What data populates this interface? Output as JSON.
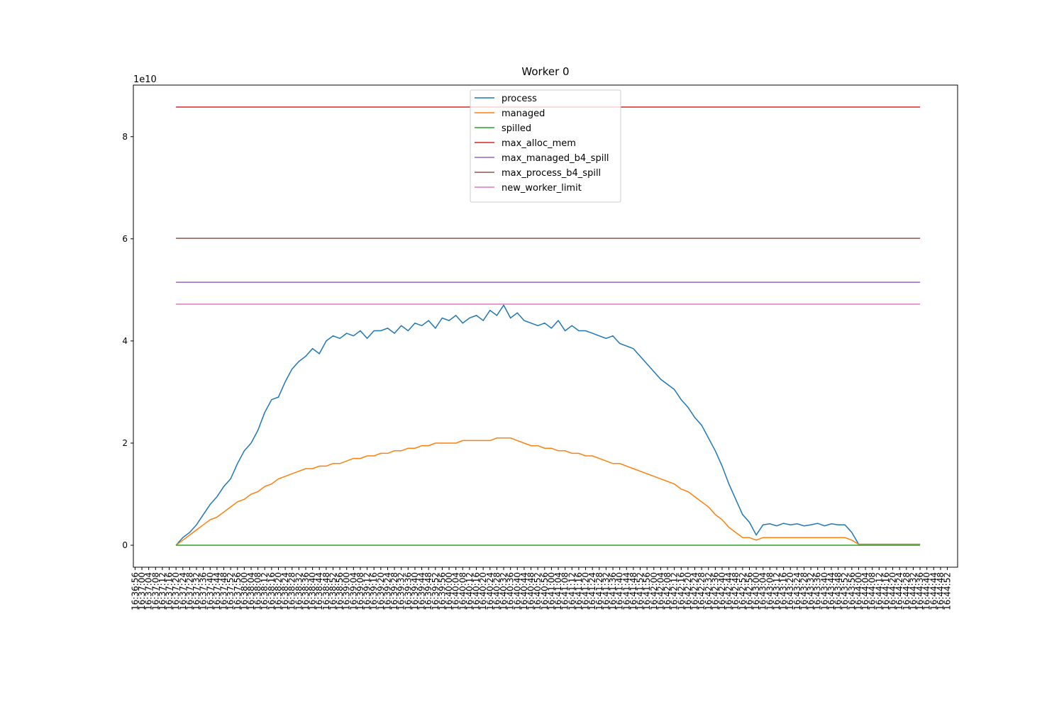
{
  "chart_data": {
    "type": "line",
    "title": "Worker 0",
    "y_offset_label": "1e10",
    "x": [
      "16:37:20",
      "16:37:24",
      "16:37:28",
      "16:37:32",
      "16:37:36",
      "16:37:40",
      "16:37:44",
      "16:37:48",
      "16:37:52",
      "16:37:56",
      "16:38:00",
      "16:38:04",
      "16:38:08",
      "16:38:12",
      "16:38:16",
      "16:38:20",
      "16:38:24",
      "16:38:28",
      "16:38:32",
      "16:38:36",
      "16:38:40",
      "16:38:44",
      "16:38:48",
      "16:38:52",
      "16:38:56",
      "16:39:00",
      "16:39:04",
      "16:39:08",
      "16:39:12",
      "16:39:16",
      "16:39:20",
      "16:39:24",
      "16:39:28",
      "16:39:32",
      "16:39:36",
      "16:39:40",
      "16:39:44",
      "16:39:48",
      "16:39:52",
      "16:39:56",
      "16:40:00",
      "16:40:04",
      "16:40:08",
      "16:40:12",
      "16:40:16",
      "16:40:20",
      "16:40:24",
      "16:40:28",
      "16:40:32",
      "16:40:36",
      "16:40:40",
      "16:40:44",
      "16:40:48",
      "16:40:52",
      "16:40:56",
      "16:41:00",
      "16:41:04",
      "16:41:08",
      "16:41:12",
      "16:41:16",
      "16:41:20",
      "16:41:24",
      "16:41:28",
      "16:41:32",
      "16:41:36",
      "16:41:40",
      "16:41:44",
      "16:41:48",
      "16:41:52",
      "16:41:56",
      "16:42:00",
      "16:42:04",
      "16:42:08",
      "16:42:12",
      "16:42:16",
      "16:42:20",
      "16:42:24",
      "16:42:28",
      "16:42:32",
      "16:42:36",
      "16:42:40",
      "16:42:44",
      "16:42:48",
      "16:42:52",
      "16:42:56",
      "16:43:00",
      "16:43:04",
      "16:43:08",
      "16:43:12",
      "16:43:16",
      "16:43:20",
      "16:43:24",
      "16:43:28",
      "16:43:32",
      "16:43:36",
      "16:43:40",
      "16:43:44",
      "16:43:48",
      "16:43:52",
      "16:43:56",
      "16:44:00",
      "16:44:04",
      "16:44:08",
      "16:44:12",
      "16:44:16",
      "16:44:20",
      "16:44:24",
      "16:44:28",
      "16:44:32",
      "16:44:36"
    ],
    "series": [
      {
        "name": "process",
        "color": "#1f77b4",
        "values": [
          0,
          0.15,
          0.25,
          0.4,
          0.6,
          0.8,
          0.95,
          1.15,
          1.3,
          1.6,
          1.85,
          2.0,
          2.25,
          2.6,
          2.85,
          2.9,
          3.2,
          3.45,
          3.6,
          3.7,
          3.85,
          3.75,
          4.0,
          4.1,
          4.05,
          4.15,
          4.1,
          4.2,
          4.05,
          4.2,
          4.2,
          4.25,
          4.15,
          4.3,
          4.2,
          4.35,
          4.3,
          4.4,
          4.25,
          4.45,
          4.4,
          4.5,
          4.35,
          4.45,
          4.5,
          4.4,
          4.6,
          4.5,
          4.7,
          4.45,
          4.55,
          4.4,
          4.35,
          4.3,
          4.35,
          4.25,
          4.4,
          4.2,
          4.3,
          4.2,
          4.2,
          4.15,
          4.1,
          4.05,
          4.1,
          3.95,
          3.9,
          3.85,
          3.7,
          3.55,
          3.4,
          3.25,
          3.15,
          3.05,
          2.85,
          2.7,
          2.5,
          2.35,
          2.1,
          1.85,
          1.55,
          1.2,
          0.9,
          0.6,
          0.45,
          0.2,
          0.4,
          0.42,
          0.38,
          0.43,
          0.4,
          0.42,
          0.38,
          0.4,
          0.43,
          0.38,
          0.42,
          0.4,
          0.4,
          0.25,
          0.02,
          0.02,
          0.02,
          0.02,
          0.02,
          0.02,
          0.02,
          0.02,
          0.02,
          0.02
        ]
      },
      {
        "name": "managed",
        "color": "#ff7f0e",
        "values": [
          0,
          0.1,
          0.2,
          0.3,
          0.4,
          0.5,
          0.55,
          0.65,
          0.75,
          0.85,
          0.9,
          1.0,
          1.05,
          1.15,
          1.2,
          1.3,
          1.35,
          1.4,
          1.45,
          1.5,
          1.5,
          1.55,
          1.55,
          1.6,
          1.6,
          1.65,
          1.7,
          1.7,
          1.75,
          1.75,
          1.8,
          1.8,
          1.85,
          1.85,
          1.9,
          1.9,
          1.95,
          1.95,
          2.0,
          2.0,
          2.0,
          2.0,
          2.05,
          2.05,
          2.05,
          2.05,
          2.05,
          2.1,
          2.1,
          2.1,
          2.05,
          2.0,
          1.95,
          1.95,
          1.9,
          1.9,
          1.85,
          1.85,
          1.8,
          1.8,
          1.75,
          1.75,
          1.7,
          1.65,
          1.6,
          1.6,
          1.55,
          1.5,
          1.45,
          1.4,
          1.35,
          1.3,
          1.25,
          1.2,
          1.1,
          1.05,
          0.95,
          0.85,
          0.75,
          0.6,
          0.5,
          0.35,
          0.25,
          0.15,
          0.15,
          0.1,
          0.15,
          0.15,
          0.15,
          0.15,
          0.15,
          0.15,
          0.15,
          0.15,
          0.15,
          0.15,
          0.15,
          0.15,
          0.15,
          0.1,
          0.02,
          0.02,
          0.02,
          0.02,
          0.02,
          0.02,
          0.02,
          0.02,
          0.02,
          0.02
        ]
      },
      {
        "name": "spilled",
        "color": "#2ca02c",
        "x": [
          "16:37:20",
          "16:44:36"
        ],
        "values": [
          0,
          0
        ]
      },
      {
        "name": "max_alloc_mem",
        "color": "#d62728",
        "x": [
          "16:37:20",
          "16:44:36"
        ],
        "values": [
          8.58,
          8.58
        ]
      },
      {
        "name": "max_managed_b4_spill",
        "color": "#9467bd",
        "x": [
          "16:37:20",
          "16:44:36"
        ],
        "values": [
          5.15,
          5.15
        ]
      },
      {
        "name": "max_process_b4_spill",
        "color": "#8c564b",
        "x": [
          "16:37:20",
          "16:44:36"
        ],
        "values": [
          6.01,
          6.01
        ]
      },
      {
        "name": "new_worker_limit",
        "color": "#e377c2",
        "x": [
          "16:37:20",
          "16:44:36"
        ],
        "values": [
          4.72,
          4.72
        ]
      }
    ],
    "xlim": [
      "16:36:55",
      "16:44:58"
    ],
    "xticks": [
      "16:36:56",
      "16:37:00",
      "16:37:04",
      "16:37:08",
      "16:37:12",
      "16:37:16",
      "16:37:20",
      "16:37:24",
      "16:37:28",
      "16:37:32",
      "16:37:36",
      "16:37:40",
      "16:37:44",
      "16:37:48",
      "16:37:52",
      "16:37:56",
      "16:38:00",
      "16:38:04",
      "16:38:08",
      "16:38:12",
      "16:38:16",
      "16:38:20",
      "16:38:24",
      "16:38:28",
      "16:38:32",
      "16:38:36",
      "16:38:40",
      "16:38:44",
      "16:38:48",
      "16:38:52",
      "16:38:56",
      "16:39:00",
      "16:39:04",
      "16:39:08",
      "16:39:12",
      "16:39:16",
      "16:39:20",
      "16:39:24",
      "16:39:28",
      "16:39:32",
      "16:39:36",
      "16:39:40",
      "16:39:44",
      "16:39:48",
      "16:39:52",
      "16:39:56",
      "16:40:00",
      "16:40:04",
      "16:40:08",
      "16:40:12",
      "16:40:16",
      "16:40:20",
      "16:40:24",
      "16:40:28",
      "16:40:32",
      "16:40:36",
      "16:40:40",
      "16:40:44",
      "16:40:48",
      "16:40:52",
      "16:40:56",
      "16:41:00",
      "16:41:04",
      "16:41:08",
      "16:41:12",
      "16:41:16",
      "16:41:20",
      "16:41:24",
      "16:41:28",
      "16:41:32",
      "16:41:36",
      "16:41:40",
      "16:41:44",
      "16:41:48",
      "16:41:52",
      "16:41:56",
      "16:42:00",
      "16:42:04",
      "16:42:08",
      "16:42:12",
      "16:42:16",
      "16:42:20",
      "16:42:24",
      "16:42:28",
      "16:42:32",
      "16:42:36",
      "16:42:40",
      "16:42:44",
      "16:42:48",
      "16:42:52",
      "16:42:56",
      "16:43:00",
      "16:43:04",
      "16:43:08",
      "16:43:12",
      "16:43:16",
      "16:43:20",
      "16:43:24",
      "16:43:28",
      "16:43:32",
      "16:43:36",
      "16:43:40",
      "16:43:44",
      "16:43:48",
      "16:43:52",
      "16:43:56",
      "16:44:00",
      "16:44:04",
      "16:44:08",
      "16:44:12",
      "16:44:16",
      "16:44:20",
      "16:44:24",
      "16:44:28",
      "16:44:32",
      "16:44:36",
      "16:44:40",
      "16:44:44",
      "16:44:48",
      "16:44:52"
    ],
    "ylim": [
      -0.43,
      9.01
    ],
    "yticks": [
      0,
      2,
      4,
      6,
      8
    ],
    "grid": false,
    "legend": "upper center"
  }
}
